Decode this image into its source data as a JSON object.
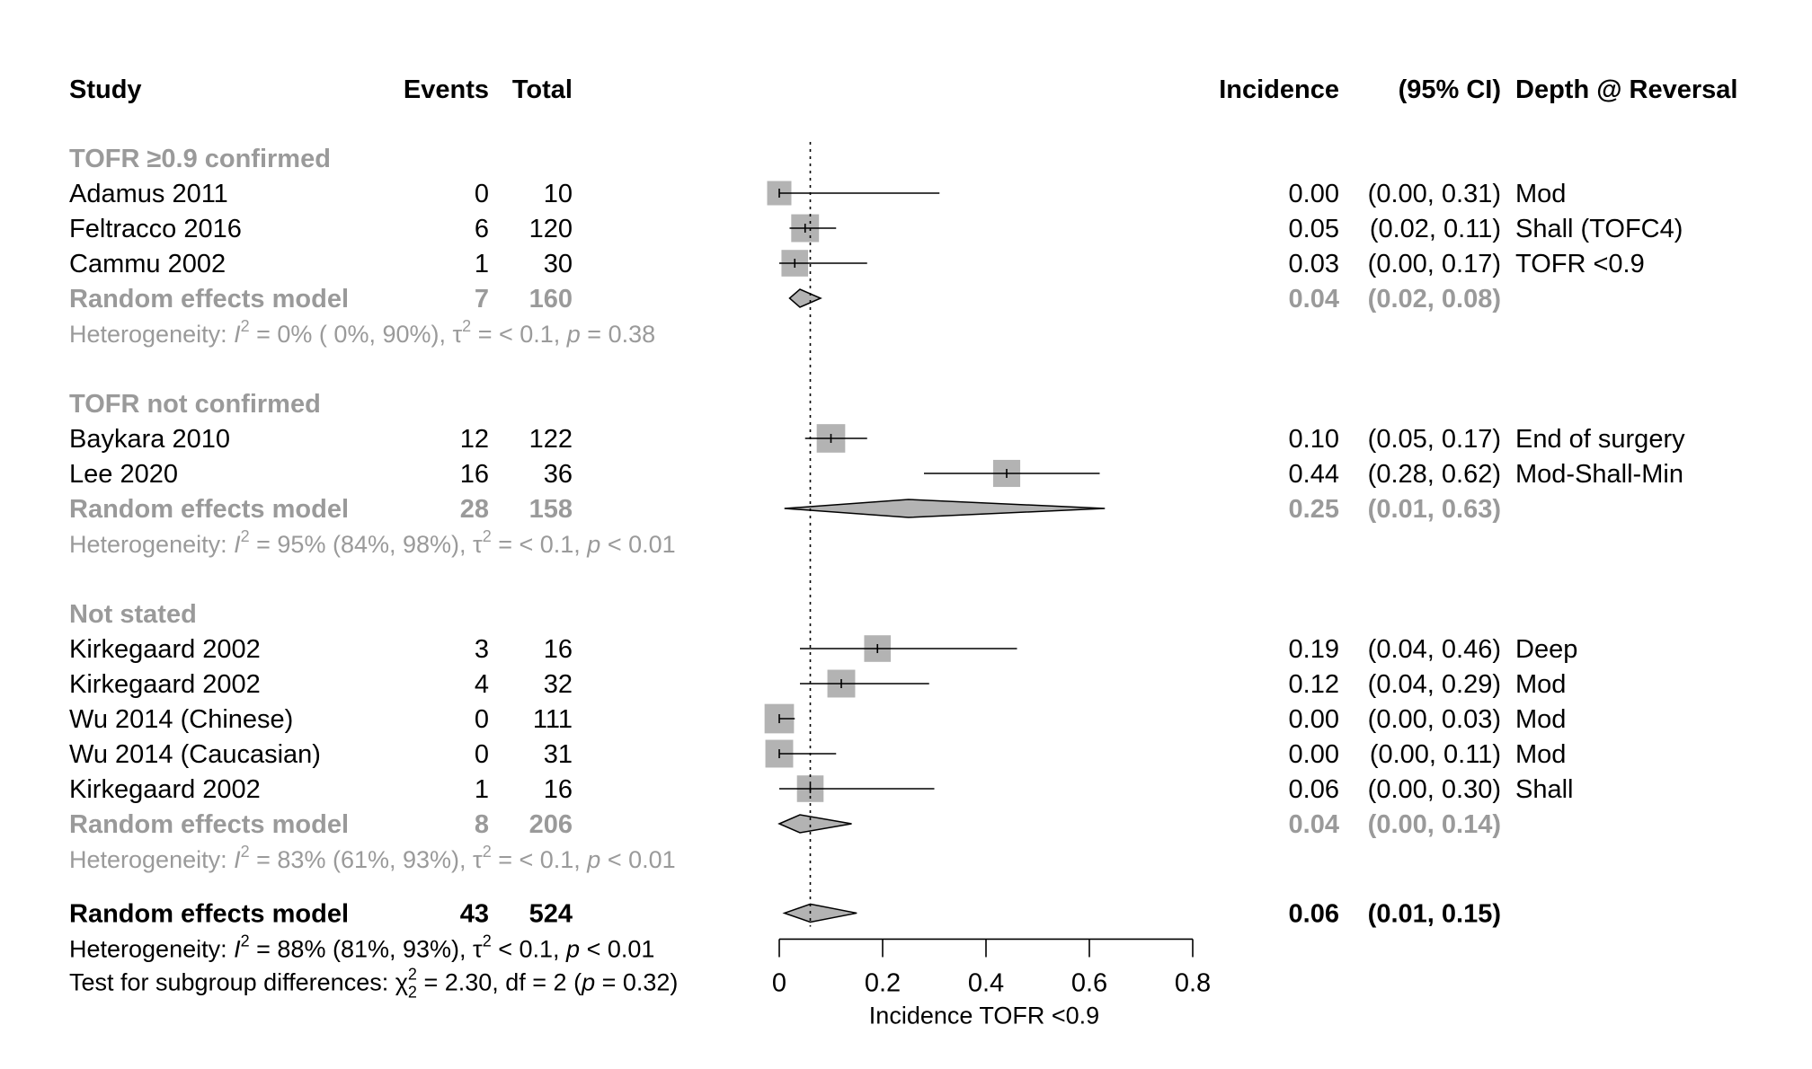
{
  "headers": {
    "study": "Study",
    "events": "Events",
    "total": "Total",
    "incidence": "Incidence",
    "ci": "(95% CI)",
    "depth": "Depth @ Reversal"
  },
  "chart_data": {
    "type": "forest",
    "x_axis": {
      "label": "Incidence TOFR <0.9",
      "range": [
        0,
        0.8
      ],
      "ticks": [
        0,
        0.2,
        0.4,
        0.6,
        0.8
      ],
      "tick_labels": [
        "0",
        "0.2",
        "0.4",
        "0.6",
        "0.8"
      ],
      "reference_line": 0.06
    },
    "groups": [
      {
        "title": "TOFR ≥0.9 confirmed",
        "studies": [
          {
            "study": "Adamus 2011",
            "events": "0",
            "total": "10",
            "est": 0.0,
            "lo": 0.0,
            "hi": 0.31,
            "weight": 0.5,
            "inc": "0.00",
            "ci": "(0.00, 0.31)",
            "depth": "Mod"
          },
          {
            "study": "Feltracco 2016",
            "events": "6",
            "total": "120",
            "est": 0.05,
            "lo": 0.02,
            "hi": 0.11,
            "weight": 0.65,
            "inc": "0.05",
            "ci": "(0.02, 0.11)",
            "depth": "Shall (TOFC4)"
          },
          {
            "study": "Cammu 2002",
            "events": "1",
            "total": "30",
            "est": 0.03,
            "lo": 0.0,
            "hi": 0.17,
            "weight": 0.6,
            "inc": "0.03",
            "ci": "(0.00, 0.17)",
            "depth": "TOFR <0.9"
          }
        ],
        "model": {
          "label": "Random effects model",
          "events": "7",
          "total": "160",
          "est": 0.04,
          "lo": 0.02,
          "hi": 0.08,
          "inc": "0.04",
          "ci": "(0.02, 0.08)"
        },
        "het_prefix": "Heterogeneity: ",
        "het_I2": " = 0% ( 0%, 90%), ",
        "het_tau": " = < 0.1, ",
        "het_p": " = 0.38"
      },
      {
        "title": "TOFR not confirmed",
        "studies": [
          {
            "study": "Baykara 2010",
            "events": "12",
            "total": "122",
            "est": 0.1,
            "lo": 0.05,
            "hi": 0.17,
            "weight": 0.68,
            "inc": "0.10",
            "ci": "(0.05, 0.17)",
            "depth": "End of surgery"
          },
          {
            "study": "Lee 2020",
            "events": "16",
            "total": "36",
            "est": 0.44,
            "lo": 0.28,
            "hi": 0.62,
            "weight": 0.62,
            "inc": "0.44",
            "ci": "(0.28, 0.62)",
            "depth": "Mod-Shall-Min"
          }
        ],
        "model": {
          "label": "Random effects model",
          "events": "28",
          "total": "158",
          "est": 0.25,
          "lo": 0.01,
          "hi": 0.63,
          "inc": "0.25",
          "ci": "(0.01, 0.63)"
        },
        "het_prefix": "Heterogeneity: ",
        "het_I2": " = 95% (84%, 98%), ",
        "het_tau": " = < 0.1, ",
        "het_p": " < 0.01"
      },
      {
        "title": "Not stated",
        "studies": [
          {
            "study": "Kirkegaard 2002",
            "events": "3",
            "total": "16",
            "est": 0.19,
            "lo": 0.04,
            "hi": 0.46,
            "weight": 0.6,
            "inc": "0.19",
            "ci": "(0.04, 0.46)",
            "depth": "Deep"
          },
          {
            "study": "Kirkegaard 2002",
            "events": "4",
            "total": "32",
            "est": 0.12,
            "lo": 0.04,
            "hi": 0.29,
            "weight": 0.65,
            "inc": "0.12",
            "ci": "(0.04, 0.29)",
            "depth": "Mod"
          },
          {
            "study": "Wu 2014 (Chinese)",
            "events": "0",
            "total": "111",
            "est": 0.0,
            "lo": 0.0,
            "hi": 0.03,
            "weight": 0.72,
            "inc": "0.00",
            "ci": "(0.00, 0.03)",
            "depth": "Mod"
          },
          {
            "study": "Wu 2014 (Caucasian)",
            "events": "0",
            "total": "31",
            "est": 0.0,
            "lo": 0.0,
            "hi": 0.11,
            "weight": 0.65,
            "inc": "0.00",
            "ci": "(0.00, 0.11)",
            "depth": "Mod"
          },
          {
            "study": "Kirkegaard 2002",
            "events": "1",
            "total": "16",
            "est": 0.06,
            "lo": 0.0,
            "hi": 0.3,
            "weight": 0.6,
            "inc": "0.06",
            "ci": "(0.00, 0.30)",
            "depth": "Shall"
          }
        ],
        "model": {
          "label": "Random effects model",
          "events": "8",
          "total": "206",
          "est": 0.04,
          "lo": 0.0,
          "hi": 0.14,
          "inc": "0.04",
          "ci": "(0.00, 0.14)"
        },
        "het_prefix": "Heterogeneity: ",
        "het_I2": " = 83% (61%, 93%), ",
        "het_tau": " = < 0.1, ",
        "het_p": " < 0.01"
      }
    ],
    "overall": {
      "label": "Random effects model",
      "events": "43",
      "total": "524",
      "est": 0.06,
      "lo": 0.01,
      "hi": 0.15,
      "inc": "0.06",
      "ci": "(0.01, 0.15)",
      "het_prefix": "Heterogeneity: ",
      "het_I2": " = 88% (81%, 93%), ",
      "het_tau": " < 0.1, ",
      "het_p": " < 0.01",
      "subgroup_prefix": "Test for subgroup differences: ",
      "subgroup_rest": " = 2.30, df = 2 (",
      "subgroup_p": " = 0.32)"
    }
  }
}
